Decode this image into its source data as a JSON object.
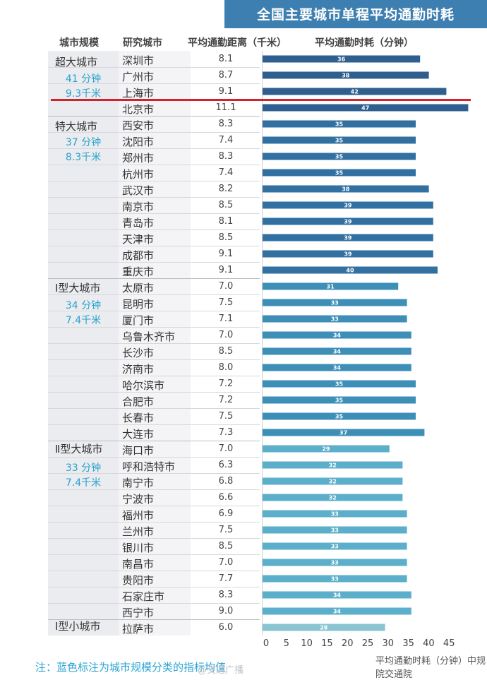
{
  "title": "全国主要城市单程平均通勤时耗",
  "headers": {
    "scale": "城市规模",
    "city": "研究城市",
    "distance": "平均通勤距离（千米）",
    "time": "平均通勤时耗（分钟）"
  },
  "groups": [
    {
      "name": "超大城市",
      "avg_time": "41 分钟",
      "avg_dist": "9.3千米"
    },
    {
      "name": "特大城市",
      "avg_time": "37 分钟",
      "avg_dist": "8.3千米"
    },
    {
      "name": "Ⅰ型大城市",
      "avg_time": "34 分钟",
      "avg_dist": "7.4千米"
    },
    {
      "name": "Ⅱ型大城市",
      "avg_time": "33 分钟",
      "avg_dist": "7.4千米"
    },
    {
      "name": "Ⅰ型小城市"
    }
  ],
  "rows": [
    {
      "city": "深圳市",
      "distance": "8.1"
    },
    {
      "city": "广州市",
      "distance": "8.7"
    },
    {
      "city": "上海市",
      "distance": "9.1"
    },
    {
      "city": "北京市",
      "distance": "11.1"
    },
    {
      "city": "西安市",
      "distance": "8.3"
    },
    {
      "city": "沈阳市",
      "distance": "7.4"
    },
    {
      "city": "郑州市",
      "distance": "8.3"
    },
    {
      "city": "杭州市",
      "distance": "7.4"
    },
    {
      "city": "武汉市",
      "distance": "8.2"
    },
    {
      "city": "南京市",
      "distance": "8.5"
    },
    {
      "city": "青岛市",
      "distance": "8.1"
    },
    {
      "city": "天津市",
      "distance": "8.5"
    },
    {
      "city": "成都市",
      "distance": "9.1"
    },
    {
      "city": "重庆市",
      "distance": "9.1"
    },
    {
      "city": "太原市",
      "distance": "7.0"
    },
    {
      "city": "昆明市",
      "distance": "7.5"
    },
    {
      "city": "厦门市",
      "distance": "7.1"
    },
    {
      "city": "乌鲁木齐市",
      "distance": "7.0"
    },
    {
      "city": "长沙市",
      "distance": "8.5"
    },
    {
      "city": "济南市",
      "distance": "8.0"
    },
    {
      "city": "哈尔滨市",
      "distance": "7.2"
    },
    {
      "city": "合肥市",
      "distance": "7.2"
    },
    {
      "city": "长春市",
      "distance": "7.5"
    },
    {
      "city": "大连市",
      "distance": "7.3"
    },
    {
      "city": "海口市",
      "distance": "7.0"
    },
    {
      "city": "呼和浩特市",
      "distance": "6.3"
    },
    {
      "city": "南宁市",
      "distance": "6.8"
    },
    {
      "city": "宁波市",
      "distance": "6.6"
    },
    {
      "city": "福州市",
      "distance": "6.9"
    },
    {
      "city": "兰州市",
      "distance": "7.5"
    },
    {
      "city": "银川市",
      "distance": "8.5"
    },
    {
      "city": "南昌市",
      "distance": "7.0"
    },
    {
      "city": "贵阳市",
      "distance": "7.7"
    },
    {
      "city": "石家庄市",
      "distance": "8.3"
    },
    {
      "city": "西宁市",
      "distance": "9.0"
    },
    {
      "city": "拉萨市",
      "distance": "6.0"
    }
  ],
  "chart_data": {
    "type": "bar",
    "orientation": "horizontal",
    "title": "全国主要城市单程平均通勤时耗",
    "xlabel": "平均通勤时耗（分钟）",
    "xlim": [
      0,
      47
    ],
    "xticks": [
      0,
      5,
      10,
      15,
      20,
      25,
      30,
      35,
      40,
      45
    ],
    "categories": [
      "深圳市",
      "广州市",
      "上海市",
      "北京市",
      "西安市",
      "沈阳市",
      "郑州市",
      "杭州市",
      "武汉市",
      "南京市",
      "青岛市",
      "天津市",
      "成都市",
      "重庆市",
      "太原市",
      "昆明市",
      "厦门市",
      "乌鲁木齐市",
      "长沙市",
      "济南市",
      "哈尔滨市",
      "合肥市",
      "长春市",
      "大连市",
      "海口市",
      "呼和浩特市",
      "南宁市",
      "宁波市",
      "福州市",
      "兰州市",
      "银川市",
      "南昌市",
      "贵阳市",
      "石家庄市",
      "西宁市",
      "拉萨市"
    ],
    "values": [
      36,
      38,
      42,
      47,
      35,
      35,
      35,
      35,
      38,
      39,
      39,
      39,
      39,
      40,
      31,
      33,
      33,
      34,
      34,
      34,
      35,
      35,
      35,
      37,
      29,
      32,
      32,
      32,
      33,
      33,
      33,
      33,
      33,
      34,
      34,
      28
    ],
    "group_colors": [
      "#2e5f8e",
      "#3270a1",
      "#3d8fb8",
      "#5cafca",
      "#8ac4d3"
    ],
    "groups": [
      [
        0,
        4
      ],
      [
        4,
        14
      ],
      [
        14,
        24
      ],
      [
        24,
        35
      ],
      [
        35,
        36
      ]
    ],
    "grid": false
  },
  "note": "注：蓝色标注为城市规模分类的指标均值",
  "watermark": "@交通广播",
  "credit": "平均通勤时耗（分钟）中规院交通院"
}
